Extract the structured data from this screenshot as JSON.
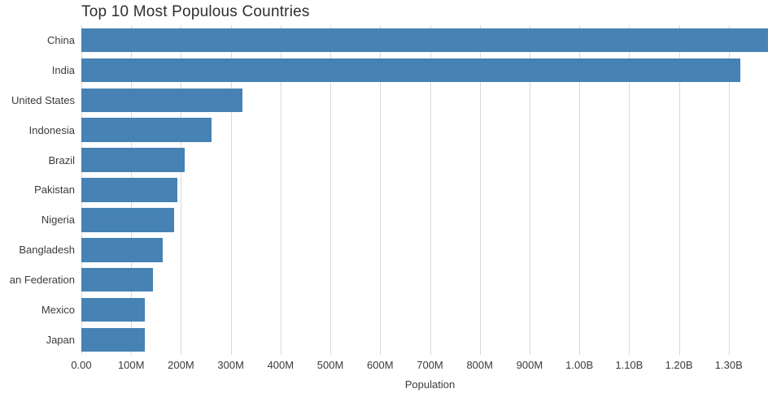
{
  "chart_data": {
    "type": "bar",
    "orientation": "horizontal",
    "title": "Top 10 Most Populous Countries",
    "xlabel": "Population",
    "categories": [
      "China",
      "India",
      "United States",
      "Indonesia",
      "Brazil",
      "Pakistan",
      "Nigeria",
      "Bangladesh",
      "an Federation",
      "Mexico",
      "Japan"
    ],
    "values_millions": [
      1379,
      1324,
      323,
      261,
      208,
      193,
      186,
      163,
      144,
      127,
      127
    ],
    "xlim_millions": [
      0,
      1400
    ],
    "xticks": [
      {
        "value_millions": 0,
        "label": "0.00"
      },
      {
        "value_millions": 100,
        "label": "100M"
      },
      {
        "value_millions": 200,
        "label": "200M"
      },
      {
        "value_millions": 300,
        "label": "300M"
      },
      {
        "value_millions": 400,
        "label": "400M"
      },
      {
        "value_millions": 500,
        "label": "500M"
      },
      {
        "value_millions": 600,
        "label": "600M"
      },
      {
        "value_millions": 700,
        "label": "700M"
      },
      {
        "value_millions": 800,
        "label": "800M"
      },
      {
        "value_millions": 900,
        "label": "900M"
      },
      {
        "value_millions": 1000,
        "label": "1.00B"
      },
      {
        "value_millions": 1100,
        "label": "1.10B"
      },
      {
        "value_millions": 1200,
        "label": "1.20B"
      },
      {
        "value_millions": 1300,
        "label": "1.30B"
      }
    ],
    "bar_color": "#4682b4",
    "gridline_color": "#d9d9d9",
    "text_color": "#3b3b3b",
    "legend": "none",
    "grid": "vertical"
  }
}
